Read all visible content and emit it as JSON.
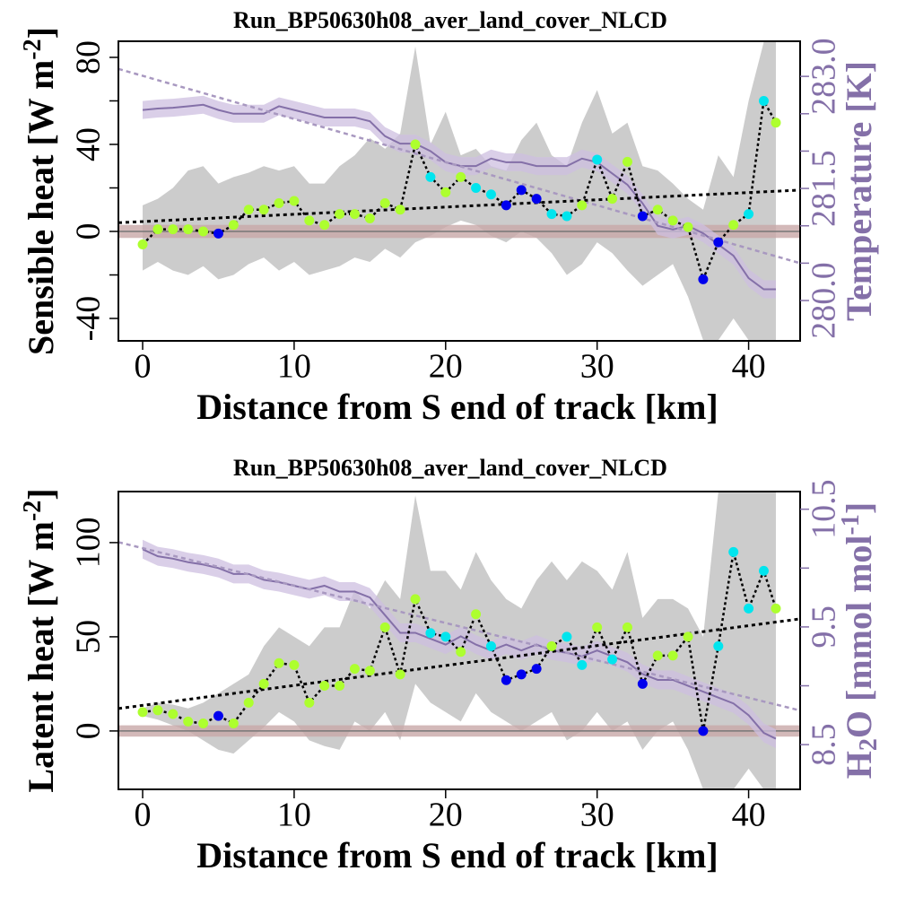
{
  "chart_data": [
    {
      "type": "line",
      "title": "Run_BP50630h08_aver_land_cover_NLCD",
      "xlabel": "Distance from S end of track [km]",
      "ylabel": {
        "parts": [
          "Sensible heat [W m",
          "-2",
          "]"
        ],
        "super_parts": [
          1
        ],
        "sub_parts": []
      },
      "y2label": {
        "parts": [
          "Temperature [K]"
        ],
        "super_parts": [],
        "sub_parts": []
      },
      "xlim": [
        -1.6,
        43.4
      ],
      "xticks": [
        0,
        10,
        20,
        30,
        40
      ],
      "ylim": [
        -50.3,
        87.4
      ],
      "yticks": [
        -40,
        0,
        40,
        80
      ],
      "yminorticks": [
        -20,
        20,
        60
      ],
      "y2lim": [
        279.46,
        283.47
      ],
      "y2ticks": [
        {
          "value": 283,
          "label": "283.0"
        },
        {
          "value": 281.5,
          "label": "281.5"
        },
        {
          "value": 280,
          "label": "280.0"
        }
      ],
      "y2minorticks": [
        280.5,
        281,
        282,
        282.5
      ],
      "y2color": "#8470a8",
      "x": [
        0,
        1,
        2,
        3,
        4,
        5,
        6,
        7,
        8,
        9,
        10,
        11,
        12,
        13,
        14,
        15,
        16,
        17,
        18,
        19,
        20,
        21,
        22,
        23,
        24,
        25,
        26,
        27,
        28,
        29,
        30,
        31,
        32,
        33,
        34,
        35,
        36,
        37,
        38,
        39,
        40,
        41,
        41.8
      ],
      "band": {
        "color": "#cccccc",
        "upper": [
          12,
          15,
          20,
          28,
          30,
          22,
          25,
          27,
          30,
          28,
          30,
          22,
          22,
          30,
          35,
          43,
          38,
          45,
          85,
          40,
          55,
          35,
          38,
          30,
          28,
          42,
          50,
          35,
          30,
          50,
          65,
          45,
          50,
          30,
          28,
          22,
          15,
          10,
          35,
          25,
          60,
          87,
          87
        ],
        "lower": [
          -18,
          -14,
          -18,
          -20,
          -16,
          -22,
          -20,
          -15,
          -12,
          -18,
          -14,
          -20,
          -18,
          -16,
          -12,
          -14,
          -8,
          -12,
          -5,
          -2,
          2,
          5,
          3,
          -2,
          -5,
          0,
          -3,
          -10,
          -20,
          -15,
          -5,
          -10,
          -18,
          -25,
          -20,
          -15,
          -30,
          -50,
          -50,
          -40,
          -50,
          -50,
          -50
        ]
      },
      "ref_band": [
        -3,
        3
      ],
      "ref_band_color": "#c8a8a8",
      "ref_line": 0,
      "flux": {
        "line_color": "#000000",
        "values": [
          -6,
          1,
          1,
          1,
          0,
          -1,
          3,
          10,
          10,
          13,
          14,
          5,
          3,
          8,
          8,
          6,
          13,
          10,
          40,
          25,
          18,
          25,
          20,
          17,
          12,
          19,
          15,
          8,
          7,
          12,
          33,
          15,
          32,
          7,
          10,
          5,
          2,
          -22,
          -5,
          3,
          8,
          60,
          50
        ],
        "point_colors": [
          "#adff2f",
          "#adff2f",
          "#adff2f",
          "#adff2f",
          "#adff2f",
          "#0000ee",
          "#adff2f",
          "#adff2f",
          "#adff2f",
          "#adff2f",
          "#adff2f",
          "#adff2f",
          "#adff2f",
          "#adff2f",
          "#adff2f",
          "#adff2f",
          "#adff2f",
          "#adff2f",
          "#adff2f",
          "#00e5ee",
          "#adff2f",
          "#adff2f",
          "#00e5ee",
          "#00e5ee",
          "#0000ee",
          "#0000ee",
          "#0000ee",
          "#00e5ee",
          "#00e5ee",
          "#adff2f",
          "#00e5ee",
          "#adff2f",
          "#adff2f",
          "#0000ee",
          "#adff2f",
          "#adff2f",
          "#adff2f",
          "#0000ee",
          "#0000ee",
          "#adff2f",
          "#00e5ee",
          "#00e5ee",
          "#adff2f"
        ]
      },
      "trend": {
        "x": [
          -1.6,
          43.4
        ],
        "values": [
          4,
          19
        ]
      },
      "y2_series": {
        "band_color": "#cdbfe0",
        "values": [
          282.55,
          282.57,
          282.58,
          282.6,
          282.62,
          282.55,
          282.5,
          282.5,
          282.5,
          282.6,
          282.55,
          282.5,
          282.45,
          282.45,
          282.45,
          282.4,
          282.2,
          282.1,
          282.1,
          282,
          281.85,
          281.8,
          281.8,
          281.9,
          281.85,
          281.85,
          281.8,
          281.8,
          281.8,
          281.9,
          281.85,
          281.7,
          281.55,
          281.3,
          281.0,
          280.95,
          281.0,
          280.9,
          280.75,
          280.6,
          280.3,
          280.15,
          280.15
        ],
        "upper": [
          282.67,
          282.69,
          282.7,
          282.72,
          282.74,
          282.67,
          282.62,
          282.62,
          282.62,
          282.72,
          282.67,
          282.62,
          282.57,
          282.57,
          282.57,
          282.52,
          282.32,
          282.22,
          282.22,
          282.12,
          281.97,
          281.92,
          281.92,
          282.02,
          281.97,
          281.97,
          281.92,
          281.92,
          281.92,
          282.02,
          281.97,
          281.82,
          281.67,
          281.42,
          281.12,
          281.07,
          281.12,
          281.02,
          280.87,
          280.72,
          280.42,
          280.27,
          280.27
        ],
        "lower": [
          282.43,
          282.45,
          282.46,
          282.48,
          282.5,
          282.43,
          282.38,
          282.38,
          282.38,
          282.48,
          282.43,
          282.38,
          282.33,
          282.33,
          282.33,
          282.28,
          282.08,
          281.98,
          281.98,
          281.88,
          281.73,
          281.68,
          281.68,
          281.78,
          281.73,
          281.73,
          281.68,
          281.68,
          281.68,
          281.78,
          281.73,
          281.58,
          281.43,
          281.18,
          280.88,
          280.83,
          280.88,
          280.78,
          280.63,
          280.48,
          280.18,
          280.03,
          280.03
        ]
      },
      "y2_trend": {
        "x": [
          -1.6,
          43.4
        ],
        "values": [
          283.1,
          280.5
        ]
      }
    },
    {
      "type": "line",
      "title": "Run_BP50630h08_aver_land_cover_NLCD",
      "xlabel": "Distance from S end of track [km]",
      "ylabel": {
        "parts": [
          "Latent heat [W m",
          "-2",
          "]"
        ],
        "super_parts": [
          1
        ],
        "sub_parts": []
      },
      "y2label": {
        "parts": [
          "H",
          "2",
          "O [mmol mol",
          "-1",
          "]"
        ],
        "super_parts": [
          3
        ],
        "sub_parts": [
          1
        ]
      },
      "xlim": [
        -1.6,
        43.4
      ],
      "xticks": [
        0,
        10,
        20,
        30,
        40
      ],
      "ylim": [
        -31.0,
        127.1
      ],
      "yticks": [
        0,
        50,
        100
      ],
      "yminorticks": [],
      "y2lim": [
        8.12,
        10.65
      ],
      "y2ticks": [
        8.5,
        9.5,
        10.5
      ],
      "y2minorticks": [
        9,
        10
      ],
      "y2color": "#8470a8",
      "x": [
        0,
        1,
        2,
        3,
        4,
        5,
        6,
        7,
        8,
        9,
        10,
        11,
        12,
        13,
        14,
        15,
        16,
        17,
        18,
        19,
        20,
        21,
        22,
        23,
        24,
        25,
        26,
        27,
        28,
        29,
        30,
        31,
        32,
        33,
        34,
        35,
        36,
        37,
        38,
        39,
        40,
        41,
        41.8
      ],
      "band": {
        "color": "#cccccc",
        "upper": [
          12,
          15,
          14,
          12,
          15,
          20,
          25,
          30,
          45,
          55,
          50,
          45,
          55,
          55,
          75,
          65,
          80,
          70,
          125,
          85,
          85,
          75,
          95,
          80,
          70,
          65,
          80,
          90,
          80,
          90,
          85,
          75,
          95,
          60,
          70,
          70,
          65,
          50,
          127,
          127,
          127,
          127,
          127
        ],
        "lower": [
          8,
          6,
          3,
          0,
          -5,
          -10,
          -12,
          -5,
          2,
          10,
          5,
          -5,
          -8,
          -10,
          5,
          0,
          10,
          -5,
          25,
          15,
          10,
          5,
          20,
          10,
          5,
          0,
          5,
          10,
          -5,
          0,
          10,
          0,
          5,
          -10,
          0,
          5,
          -10,
          -31,
          -31,
          -31,
          -20,
          -31,
          -31
        ]
      },
      "ref_band": [
        -3,
        3
      ],
      "ref_band_color": "#c8a8a8",
      "ref_line": 0,
      "flux": {
        "line_color": "#000000",
        "values": [
          10,
          11,
          9,
          5,
          4,
          8,
          4,
          15,
          25,
          36,
          35,
          15,
          24,
          24,
          33,
          32,
          55,
          30,
          70,
          52,
          50,
          42,
          62,
          45,
          27,
          30,
          33,
          45,
          50,
          35,
          55,
          38,
          55,
          25,
          40,
          40,
          50,
          0,
          45,
          95,
          65,
          85,
          65
        ],
        "point_colors": [
          "#adff2f",
          "#adff2f",
          "#adff2f",
          "#adff2f",
          "#adff2f",
          "#0000ee",
          "#adff2f",
          "#adff2f",
          "#adff2f",
          "#adff2f",
          "#adff2f",
          "#adff2f",
          "#adff2f",
          "#adff2f",
          "#adff2f",
          "#adff2f",
          "#adff2f",
          "#adff2f",
          "#adff2f",
          "#00e5ee",
          "#00e5ee",
          "#adff2f",
          "#adff2f",
          "#00e5ee",
          "#0000ee",
          "#0000ee",
          "#0000ee",
          "#adff2f",
          "#00e5ee",
          "#00e5ee",
          "#adff2f",
          "#00e5ee",
          "#adff2f",
          "#0000ee",
          "#adff2f",
          "#adff2f",
          "#adff2f",
          "#0000ee",
          "#00e5ee",
          "#00e5ee",
          "#00e5ee",
          "#00e5ee",
          "#adff2f"
        ]
      },
      "trend": {
        "x": [
          -1.6,
          43.4
        ],
        "values": [
          11.9,
          59.5
        ]
      },
      "y2_series": {
        "band_color": "#cdbfe0",
        "values": [
          10.16,
          10.1,
          10.08,
          10.05,
          10.03,
          10.0,
          9.95,
          9.95,
          9.9,
          9.88,
          9.85,
          9.82,
          9.85,
          9.8,
          9.8,
          9.75,
          9.6,
          9.45,
          9.45,
          9.4,
          9.35,
          9.42,
          9.35,
          9.3,
          9.35,
          9.3,
          9.35,
          9.3,
          9.28,
          9.25,
          9.3,
          9.25,
          9.2,
          9.1,
          9.05,
          9.05,
          9.0,
          8.95,
          8.9,
          8.85,
          8.75,
          8.6,
          8.55
        ],
        "upper": [
          10.24,
          10.18,
          10.16,
          10.13,
          10.11,
          10.08,
          10.03,
          10.03,
          9.98,
          9.96,
          9.93,
          9.9,
          9.93,
          9.88,
          9.88,
          9.83,
          9.68,
          9.53,
          9.53,
          9.48,
          9.43,
          9.5,
          9.43,
          9.38,
          9.43,
          9.38,
          9.43,
          9.38,
          9.36,
          9.33,
          9.38,
          9.33,
          9.28,
          9.18,
          9.13,
          9.13,
          9.08,
          9.03,
          8.98,
          8.93,
          8.83,
          8.68,
          8.63
        ],
        "lower": [
          10.08,
          10.02,
          10.0,
          9.97,
          9.95,
          9.92,
          9.87,
          9.87,
          9.82,
          9.8,
          9.77,
          9.74,
          9.77,
          9.72,
          9.72,
          9.67,
          9.52,
          9.37,
          9.37,
          9.32,
          9.27,
          9.34,
          9.27,
          9.22,
          9.27,
          9.22,
          9.27,
          9.22,
          9.2,
          9.17,
          9.22,
          9.17,
          9.12,
          9.02,
          8.97,
          8.97,
          8.92,
          8.87,
          8.82,
          8.77,
          8.67,
          8.52,
          8.47
        ]
      },
      "y2_trend": {
        "x": [
          -1.6,
          43.4
        ],
        "values": [
          10.22,
          8.79
        ]
      }
    }
  ]
}
